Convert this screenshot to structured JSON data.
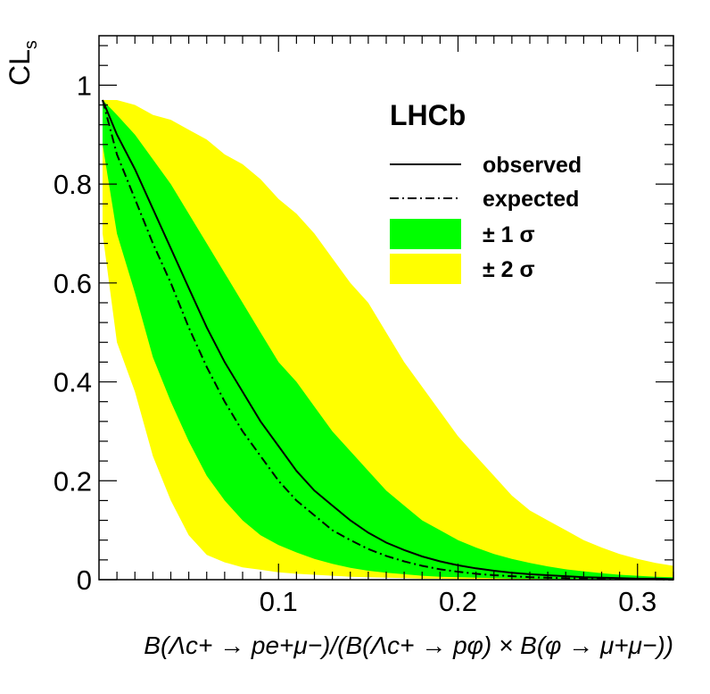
{
  "chart_data": {
    "type": "line",
    "title": "",
    "ylabel_main": "CL",
    "ylabel_sub": "s",
    "xlabel": "B(Λc+ → pe+μ−)/(B(Λc+ → pφ) × B(φ → μ+μ−))",
    "xlim": [
      0.0,
      0.32
    ],
    "ylim": [
      0.0,
      1.1
    ],
    "xticks": [
      0.1,
      0.2,
      0.3
    ],
    "xtick_labels": [
      "0.1",
      "0.2",
      "0.3"
    ],
    "yticks": [
      0,
      0.2,
      0.4,
      0.6,
      0.8,
      1
    ],
    "ytick_labels": [
      "0",
      "0.2",
      "0.4",
      "0.6",
      "0.8",
      "1"
    ],
    "grid": false,
    "legend_position": "top-right",
    "annotation": "LHCb",
    "legend": [
      {
        "label": "observed",
        "style": "solid-line"
      },
      {
        "label": "expected",
        "style": "dash-dot-line"
      },
      {
        "label": "± 1 σ",
        "style": "green-box"
      },
      {
        "label": "± 2 σ",
        "style": "yellow-box"
      }
    ],
    "colors": {
      "band1": "#00ff00",
      "band2": "#ffff00",
      "line": "#000000"
    },
    "x": [
      0.002,
      0.01,
      0.02,
      0.03,
      0.04,
      0.05,
      0.06,
      0.07,
      0.08,
      0.09,
      0.1,
      0.11,
      0.12,
      0.13,
      0.14,
      0.15,
      0.16,
      0.17,
      0.18,
      0.19,
      0.2,
      0.21,
      0.22,
      0.23,
      0.24,
      0.25,
      0.26,
      0.27,
      0.28,
      0.29,
      0.3,
      0.31,
      0.32
    ],
    "series": [
      {
        "name": "observed",
        "values": [
          0.97,
          0.9,
          0.83,
          0.75,
          0.67,
          0.59,
          0.51,
          0.44,
          0.38,
          0.32,
          0.27,
          0.22,
          0.18,
          0.15,
          0.12,
          0.095,
          0.075,
          0.06,
          0.047,
          0.037,
          0.029,
          0.023,
          0.018,
          0.014,
          0.011,
          0.009,
          0.007,
          0.005,
          0.004,
          0.003,
          0.002,
          0.002,
          0.001
        ]
      },
      {
        "name": "expected",
        "values": [
          0.97,
          0.86,
          0.77,
          0.68,
          0.6,
          0.51,
          0.43,
          0.36,
          0.3,
          0.25,
          0.2,
          0.16,
          0.13,
          0.1,
          0.08,
          0.062,
          0.048,
          0.037,
          0.028,
          0.021,
          0.016,
          0.012,
          0.009,
          0.007,
          0.005,
          0.004,
          0.003,
          0.002,
          0.002,
          0.001,
          0.001,
          0.001,
          0.0
        ]
      }
    ],
    "bands": {
      "minus2sigma": [
        0.7,
        0.48,
        0.38,
        0.25,
        0.16,
        0.09,
        0.05,
        0.035,
        0.025,
        0.02,
        0.015,
        0.012,
        0.01,
        0.008,
        0.006,
        0.005,
        0.004,
        0.003,
        0.002,
        0.002,
        0.001,
        0.001,
        0.0,
        0.0,
        0.0,
        0.0,
        0.0,
        0.0,
        0.0,
        0.0,
        0.0,
        0.0,
        0.0
      ],
      "minus1sigma": [
        0.88,
        0.7,
        0.58,
        0.45,
        0.36,
        0.28,
        0.21,
        0.16,
        0.12,
        0.09,
        0.07,
        0.055,
        0.042,
        0.032,
        0.024,
        0.018,
        0.014,
        0.011,
        0.008,
        0.006,
        0.005,
        0.004,
        0.003,
        0.002,
        0.002,
        0.001,
        0.001,
        0.001,
        0.0,
        0.0,
        0.0,
        0.0,
        0.0
      ],
      "plus1sigma": [
        0.97,
        0.94,
        0.9,
        0.85,
        0.8,
        0.74,
        0.68,
        0.62,
        0.56,
        0.5,
        0.44,
        0.4,
        0.35,
        0.3,
        0.26,
        0.22,
        0.18,
        0.15,
        0.12,
        0.1,
        0.08,
        0.065,
        0.052,
        0.042,
        0.034,
        0.027,
        0.021,
        0.017,
        0.013,
        0.01,
        0.008,
        0.006,
        0.005
      ],
      "plus2sigma": [
        0.97,
        0.97,
        0.96,
        0.94,
        0.93,
        0.91,
        0.89,
        0.86,
        0.84,
        0.81,
        0.77,
        0.74,
        0.7,
        0.65,
        0.6,
        0.56,
        0.5,
        0.44,
        0.39,
        0.34,
        0.29,
        0.25,
        0.21,
        0.17,
        0.14,
        0.12,
        0.1,
        0.08,
        0.065,
        0.052,
        0.042,
        0.034,
        0.028
      ]
    }
  }
}
